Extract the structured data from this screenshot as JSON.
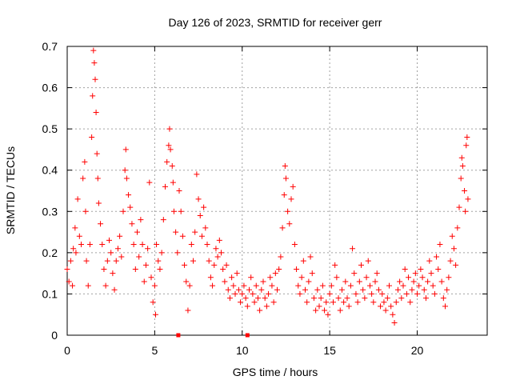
{
  "chart_data": {
    "type": "scatter",
    "title": "Day 126 of 2023, SRMTID for receiver gerr",
    "xlabel": "GPS time / hours",
    "ylabel": "SRMTID / TECUs",
    "xlim": [
      0,
      24
    ],
    "ylim": [
      0,
      0.7
    ],
    "xticks": [
      0,
      5,
      10,
      15,
      20
    ],
    "yticks": [
      0,
      0.1,
      0.2,
      0.3,
      0.4,
      0.5,
      0.6,
      0.7
    ],
    "xtick_labels": [
      "0",
      "5",
      "10",
      "15",
      "20"
    ],
    "ytick_labels": [
      "0",
      "0.1",
      "0.2",
      "0.3",
      "0.4",
      "0.5",
      "0.6",
      "0.7"
    ],
    "grid": true,
    "marker": "+",
    "color": "#ff0000",
    "series": [
      {
        "name": "SRMTID",
        "points": [
          [
            0.0,
            0.16
          ],
          [
            0.1,
            0.13
          ],
          [
            0.2,
            0.18
          ],
          [
            0.3,
            0.12
          ],
          [
            0.35,
            0.21
          ],
          [
            0.45,
            0.26
          ],
          [
            0.5,
            0.2
          ],
          [
            0.6,
            0.33
          ],
          [
            0.7,
            0.24
          ],
          [
            0.8,
            0.22
          ],
          [
            0.9,
            0.38
          ],
          [
            1.0,
            0.42
          ],
          [
            1.05,
            0.3
          ],
          [
            1.1,
            0.18
          ],
          [
            1.2,
            0.12
          ],
          [
            1.3,
            0.22
          ],
          [
            1.4,
            0.48
          ],
          [
            1.45,
            0.58
          ],
          [
            1.5,
            0.69
          ],
          [
            1.55,
            0.66
          ],
          [
            1.6,
            0.62
          ],
          [
            1.65,
            0.54
          ],
          [
            1.7,
            0.44
          ],
          [
            1.75,
            0.38
          ],
          [
            1.8,
            0.32
          ],
          [
            1.9,
            0.27
          ],
          [
            2.0,
            0.22
          ],
          [
            2.1,
            0.16
          ],
          [
            2.2,
            0.12
          ],
          [
            2.3,
            0.18
          ],
          [
            2.4,
            0.23
          ],
          [
            2.5,
            0.2
          ],
          [
            2.6,
            0.15
          ],
          [
            2.7,
            0.11
          ],
          [
            2.8,
            0.18
          ],
          [
            2.9,
            0.21
          ],
          [
            3.0,
            0.24
          ],
          [
            3.1,
            0.19
          ],
          [
            3.2,
            0.3
          ],
          [
            3.3,
            0.4
          ],
          [
            3.35,
            0.45
          ],
          [
            3.4,
            0.38
          ],
          [
            3.5,
            0.34
          ],
          [
            3.6,
            0.31
          ],
          [
            3.7,
            0.27
          ],
          [
            3.8,
            0.22
          ],
          [
            3.9,
            0.16
          ],
          [
            4.0,
            0.25
          ],
          [
            4.1,
            0.19
          ],
          [
            4.2,
            0.28
          ],
          [
            4.3,
            0.22
          ],
          [
            4.4,
            0.13
          ],
          [
            4.5,
            0.17
          ],
          [
            4.6,
            0.21
          ],
          [
            4.7,
            0.37
          ],
          [
            4.8,
            0.14
          ],
          [
            4.9,
            0.08
          ],
          [
            5.0,
            0.12
          ],
          [
            5.05,
            0.05
          ],
          [
            5.1,
            0.22
          ],
          [
            5.2,
            0.18
          ],
          [
            5.3,
            0.16
          ],
          [
            5.4,
            0.2
          ],
          [
            5.5,
            0.28
          ],
          [
            5.6,
            0.36
          ],
          [
            5.7,
            0.42
          ],
          [
            5.8,
            0.46
          ],
          [
            5.85,
            0.5
          ],
          [
            5.9,
            0.45
          ],
          [
            6.0,
            0.41
          ],
          [
            6.05,
            0.37
          ],
          [
            6.1,
            0.3
          ],
          [
            6.2,
            0.25
          ],
          [
            6.3,
            0.2
          ],
          [
            6.4,
            0.35
          ],
          [
            6.5,
            0.3
          ],
          [
            6.6,
            0.24
          ],
          [
            6.7,
            0.17
          ],
          [
            6.8,
            0.13
          ],
          [
            6.9,
            0.06
          ],
          [
            7.0,
            0.12
          ],
          [
            7.1,
            0.22
          ],
          [
            7.2,
            0.18
          ],
          [
            7.3,
            0.25
          ],
          [
            7.4,
            0.39
          ],
          [
            7.5,
            0.33
          ],
          [
            7.6,
            0.29
          ],
          [
            7.7,
            0.24
          ],
          [
            7.8,
            0.31
          ],
          [
            7.9,
            0.26
          ],
          [
            8.0,
            0.22
          ],
          [
            8.1,
            0.18
          ],
          [
            8.2,
            0.14
          ],
          [
            8.3,
            0.12
          ],
          [
            8.4,
            0.17
          ],
          [
            8.5,
            0.21
          ],
          [
            8.6,
            0.19
          ],
          [
            8.7,
            0.23
          ],
          [
            8.8,
            0.2
          ],
          [
            8.9,
            0.16
          ],
          [
            9.0,
            0.13
          ],
          [
            9.1,
            0.17
          ],
          [
            9.2,
            0.11
          ],
          [
            9.3,
            0.09
          ],
          [
            9.4,
            0.14
          ],
          [
            9.5,
            0.12
          ],
          [
            9.6,
            0.1
          ],
          [
            9.7,
            0.15
          ],
          [
            9.8,
            0.11
          ],
          [
            9.9,
            0.08
          ],
          [
            10.0,
            0.1
          ],
          [
            10.1,
            0.12
          ],
          [
            10.2,
            0.09
          ],
          [
            10.3,
            0.07
          ],
          [
            10.4,
            0.11
          ],
          [
            10.5,
            0.14
          ],
          [
            10.6,
            0.1
          ],
          [
            10.7,
            0.08
          ],
          [
            10.8,
            0.12
          ],
          [
            10.9,
            0.09
          ],
          [
            11.0,
            0.06
          ],
          [
            11.1,
            0.11
          ],
          [
            11.2,
            0.13
          ],
          [
            11.3,
            0.09
          ],
          [
            11.4,
            0.07
          ],
          [
            11.5,
            0.1
          ],
          [
            11.6,
            0.14
          ],
          [
            11.7,
            0.12
          ],
          [
            11.8,
            0.08
          ],
          [
            11.9,
            0.15
          ],
          [
            12.0,
            0.11
          ],
          [
            12.1,
            0.16
          ],
          [
            12.2,
            0.19
          ],
          [
            12.3,
            0.26
          ],
          [
            12.4,
            0.34
          ],
          [
            12.45,
            0.41
          ],
          [
            12.5,
            0.38
          ],
          [
            12.6,
            0.3
          ],
          [
            12.7,
            0.27
          ],
          [
            12.8,
            0.33
          ],
          [
            12.9,
            0.36
          ],
          [
            13.0,
            0.22
          ],
          [
            13.1,
            0.16
          ],
          [
            13.2,
            0.12
          ],
          [
            13.3,
            0.1
          ],
          [
            13.4,
            0.14
          ],
          [
            13.5,
            0.18
          ],
          [
            13.6,
            0.11
          ],
          [
            13.7,
            0.08
          ],
          [
            13.8,
            0.13
          ],
          [
            13.9,
            0.19
          ],
          [
            14.0,
            0.15
          ],
          [
            14.1,
            0.09
          ],
          [
            14.2,
            0.06
          ],
          [
            14.3,
            0.11
          ],
          [
            14.4,
            0.07
          ],
          [
            14.5,
            0.09
          ],
          [
            14.6,
            0.12
          ],
          [
            14.7,
            0.06
          ],
          [
            14.8,
            0.08
          ],
          [
            14.9,
            0.05
          ],
          [
            15.0,
            0.1
          ],
          [
            15.1,
            0.12
          ],
          [
            15.2,
            0.08
          ],
          [
            15.3,
            0.17
          ],
          [
            15.4,
            0.14
          ],
          [
            15.5,
            0.09
          ],
          [
            15.6,
            0.06
          ],
          [
            15.7,
            0.11
          ],
          [
            15.8,
            0.08
          ],
          [
            15.9,
            0.13
          ],
          [
            16.0,
            0.09
          ],
          [
            16.1,
            0.07
          ],
          [
            16.2,
            0.12
          ],
          [
            16.3,
            0.21
          ],
          [
            16.4,
            0.15
          ],
          [
            16.5,
            0.1
          ],
          [
            16.6,
            0.08
          ],
          [
            16.7,
            0.13
          ],
          [
            16.8,
            0.17
          ],
          [
            16.9,
            0.11
          ],
          [
            17.0,
            0.09
          ],
          [
            17.1,
            0.14
          ],
          [
            17.2,
            0.18
          ],
          [
            17.3,
            0.12
          ],
          [
            17.4,
            0.1
          ],
          [
            17.5,
            0.08
          ],
          [
            17.6,
            0.13
          ],
          [
            17.7,
            0.15
          ],
          [
            17.8,
            0.11
          ],
          [
            17.9,
            0.07
          ],
          [
            18.0,
            0.1
          ],
          [
            18.1,
            0.08
          ],
          [
            18.2,
            0.06
          ],
          [
            18.3,
            0.09
          ],
          [
            18.4,
            0.12
          ],
          [
            18.5,
            0.07
          ],
          [
            18.6,
            0.05
          ],
          [
            18.7,
            0.03
          ],
          [
            18.8,
            0.08
          ],
          [
            18.9,
            0.11
          ],
          [
            19.0,
            0.13
          ],
          [
            19.1,
            0.09
          ],
          [
            19.2,
            0.12
          ],
          [
            19.3,
            0.16
          ],
          [
            19.4,
            0.1
          ],
          [
            19.5,
            0.14
          ],
          [
            19.6,
            0.08
          ],
          [
            19.7,
            0.11
          ],
          [
            19.8,
            0.13
          ],
          [
            19.9,
            0.15
          ],
          [
            20.0,
            0.1
          ],
          [
            20.1,
            0.12
          ],
          [
            20.2,
            0.16
          ],
          [
            20.3,
            0.14
          ],
          [
            20.4,
            0.11
          ],
          [
            20.5,
            0.09
          ],
          [
            20.6,
            0.13
          ],
          [
            20.7,
            0.18
          ],
          [
            20.8,
            0.15
          ],
          [
            20.9,
            0.12
          ],
          [
            21.0,
            0.1
          ],
          [
            21.1,
            0.19
          ],
          [
            21.2,
            0.16
          ],
          [
            21.3,
            0.22
          ],
          [
            21.4,
            0.13
          ],
          [
            21.5,
            0.09
          ],
          [
            21.6,
            0.07
          ],
          [
            21.7,
            0.11
          ],
          [
            21.8,
            0.14
          ],
          [
            21.9,
            0.18
          ],
          [
            22.0,
            0.24
          ],
          [
            22.1,
            0.21
          ],
          [
            22.2,
            0.17
          ],
          [
            22.3,
            0.26
          ],
          [
            22.4,
            0.31
          ],
          [
            22.5,
            0.38
          ],
          [
            22.55,
            0.43
          ],
          [
            22.6,
            0.41
          ],
          [
            22.7,
            0.35
          ],
          [
            22.75,
            0.3
          ],
          [
            22.8,
            0.46
          ],
          [
            22.85,
            0.48
          ],
          [
            22.9,
            0.33
          ]
        ]
      }
    ],
    "gap_markers": [
      {
        "x": 6.35,
        "y": 0
      },
      {
        "x": 10.3,
        "y": 0
      }
    ]
  }
}
